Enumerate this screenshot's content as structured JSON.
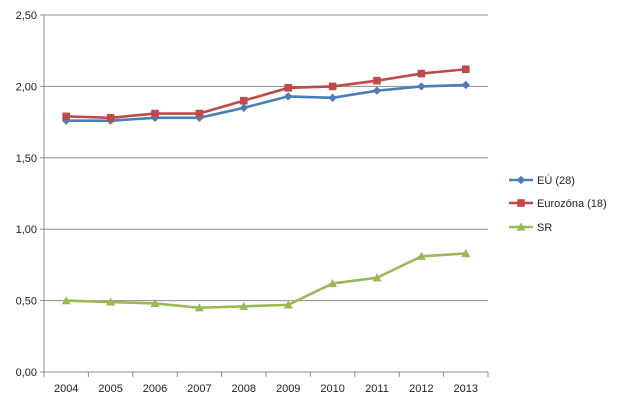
{
  "chart_data": {
    "type": "line",
    "title": "",
    "xlabel": "",
    "ylabel": "",
    "categories": [
      "2004",
      "2005",
      "2006",
      "2007",
      "2008",
      "2009",
      "2010",
      "2011",
      "2012",
      "2013"
    ],
    "ylim": [
      0,
      2.5
    ],
    "y_ticks": [
      "0,00",
      "0,50",
      "1,00",
      "1,50",
      "2,00",
      "2,50"
    ],
    "grid": true,
    "legend_position": "right",
    "series": [
      {
        "name": "EÚ (28)",
        "color": "#4a7ebb",
        "marker": "diamond",
        "values": [
          1.76,
          1.76,
          1.78,
          1.78,
          1.85,
          1.93,
          1.92,
          1.97,
          2.0,
          2.01
        ]
      },
      {
        "name": "Eurozóna (18)",
        "color": "#be4b48",
        "marker": "square",
        "values": [
          1.79,
          1.78,
          1.81,
          1.81,
          1.9,
          1.99,
          2.0,
          2.04,
          2.09,
          2.12
        ]
      },
      {
        "name": "SR",
        "color": "#98b954",
        "marker": "triangle",
        "values": [
          0.5,
          0.49,
          0.48,
          0.45,
          0.46,
          0.47,
          0.62,
          0.66,
          0.81,
          0.83
        ]
      }
    ]
  }
}
